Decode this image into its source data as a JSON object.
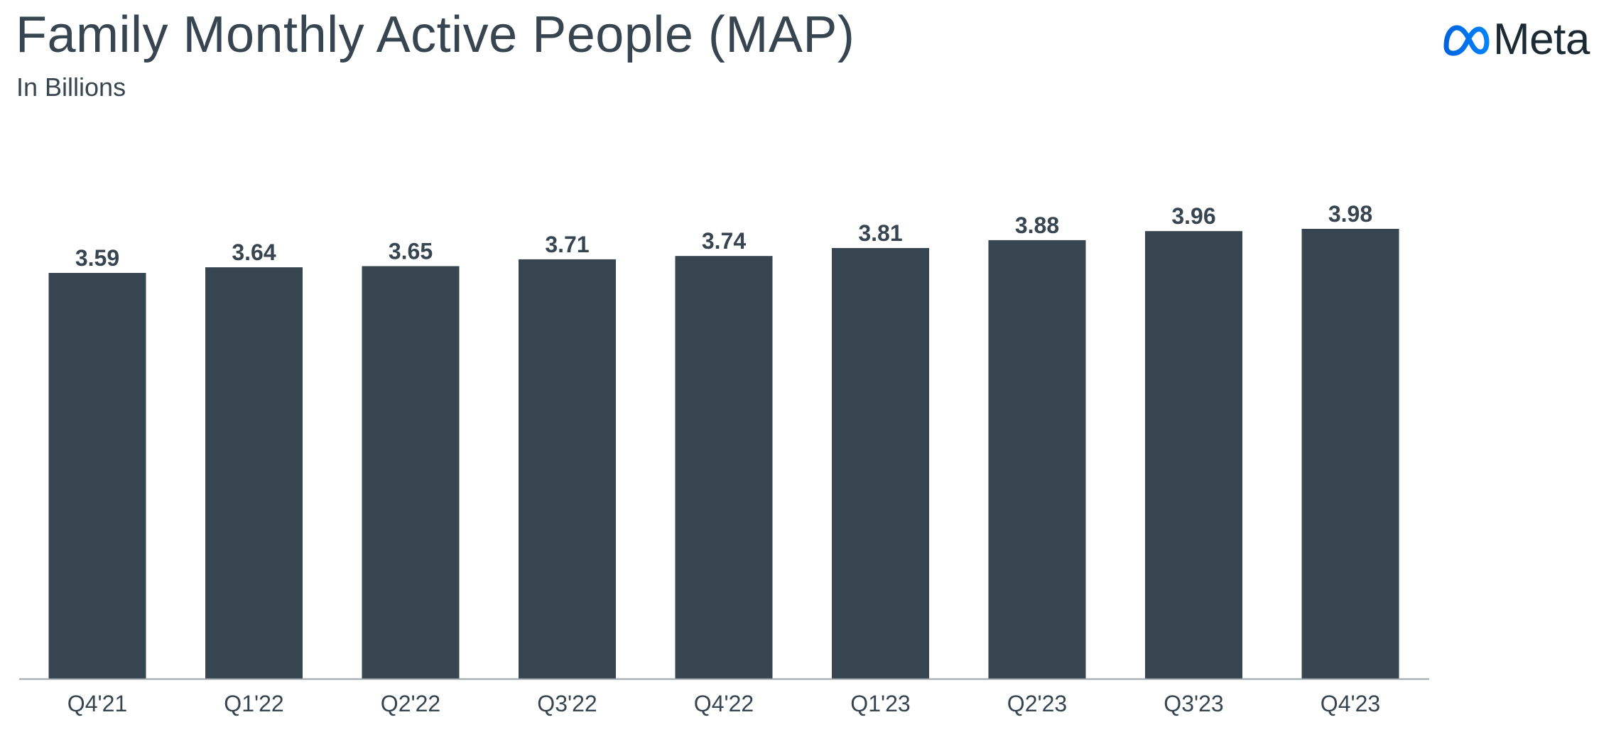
{
  "title": "Family Monthly Active People (MAP)",
  "subtitle": "In Billions",
  "logo": {
    "text": "Meta",
    "icon": "meta-infinity-logo-icon"
  },
  "colors": {
    "bar": "#36454f",
    "text": "#36454f",
    "axis": "#9aa3a9",
    "logo_gradient_start": "#0064e0",
    "logo_gradient_end": "#0082fb"
  },
  "chart_data": {
    "type": "bar",
    "title": "Family Monthly Active People (MAP)",
    "subtitle": "In Billions",
    "categories": [
      "Q4'21",
      "Q1'22",
      "Q2'22",
      "Q3'22",
      "Q4'22",
      "Q1'23",
      "Q2'23",
      "Q3'23",
      "Q4'23"
    ],
    "values": [
      3.59,
      3.64,
      3.65,
      3.71,
      3.74,
      3.81,
      3.88,
      3.96,
      3.98
    ],
    "value_labels": [
      "3.59",
      "3.64",
      "3.65",
      "3.71",
      "3.74",
      "3.81",
      "3.88",
      "3.96",
      "3.98"
    ],
    "ylim": [
      0,
      4.4
    ],
    "grid": false,
    "legend": "none"
  }
}
